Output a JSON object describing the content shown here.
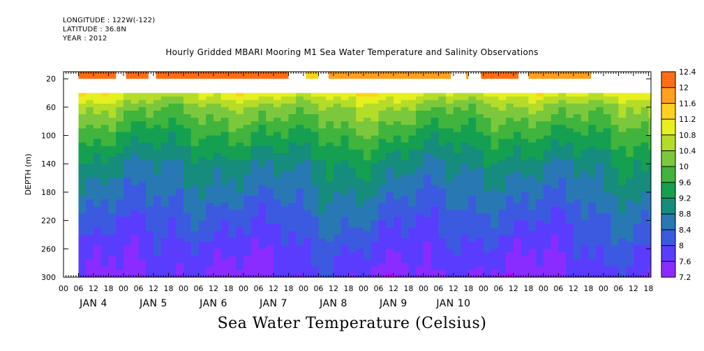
{
  "header": {
    "longitude": "LONGITUDE : 122W(-122)",
    "latitude": "LATITUDE : 36.8N",
    "year": "YEAR : 2012",
    "title": "Hourly Gridded MBARI Mooring M1 Sea Water Temperature and Salinity Observations"
  },
  "chart_data": {
    "type": "heatmap",
    "title": "Hourly Gridded MBARI Mooring M1 Sea Water Temperature and Salinity Observations",
    "xlabel": "Sea Water Temperature (Celsius)",
    "ylabel": "DEPTH (m)",
    "ylim": [
      300,
      10
    ],
    "y_ticks": [
      20,
      60,
      100,
      140,
      180,
      220,
      260,
      300
    ],
    "x_hour_ticks": [
      "00",
      "06",
      "12",
      "18",
      "00",
      "06",
      "12",
      "18",
      "00",
      "06",
      "12",
      "18",
      "00",
      "06",
      "12",
      "18",
      "00",
      "06",
      "12",
      "18",
      "00",
      "06",
      "12",
      "18",
      "00",
      "06",
      "12",
      "18",
      "00",
      "06",
      "12",
      "18",
      "00",
      "06",
      "12",
      "18",
      "00",
      "06",
      "12",
      "18"
    ],
    "x_day_labels": [
      "JAN 4",
      "JAN 5",
      "JAN 6",
      "JAN 7",
      "JAN 8",
      "JAN 9",
      "JAN 10"
    ],
    "x_range_hours": [
      0,
      235
    ],
    "data_start_hour": 6,
    "colorbar": {
      "levels": [
        7.2,
        7.6,
        8,
        8.4,
        8.8,
        9.2,
        9.6,
        10,
        10.4,
        10.8,
        11.2,
        11.6,
        12,
        12.4
      ],
      "tick_labels": [
        "7.2",
        "7.6",
        "8",
        "8.4",
        "8.8",
        "9.2",
        "9.6",
        "10",
        "10.4",
        "10.8",
        "11.2",
        "11.6",
        "12",
        "12.4"
      ],
      "colors": [
        "#c000ff",
        "#8a2cff",
        "#5a3cff",
        "#3c5ae0",
        "#2878b4",
        "#168c7c",
        "#14a050",
        "#40b43c",
        "#7cc83c",
        "#b4dc28",
        "#e6f01e",
        "#ffd21e",
        "#ffa01e",
        "#ff6e14",
        "#ff3c14",
        "#d21414",
        "#aa0a0a"
      ]
    },
    "surface_segments": [
      {
        "start": 6,
        "end": 21,
        "value": 12.0
      },
      {
        "start": 25,
        "end": 34,
        "value": 12.1
      },
      {
        "start": 37,
        "end": 90,
        "value": 12.0
      },
      {
        "start": 97,
        "end": 102,
        "value": 11.5
      },
      {
        "start": 106,
        "end": 155,
        "value": 11.8
      },
      {
        "start": 161,
        "end": 162,
        "value": 11.6
      },
      {
        "start": 167,
        "end": 182,
        "value": 12.0
      },
      {
        "start": 186,
        "end": 211,
        "value": 11.8
      }
    ],
    "profile_depths": [
      40,
      60,
      80,
      100,
      120,
      140,
      160,
      180,
      200,
      220,
      240,
      260,
      280,
      300
    ],
    "profile_temperatures": [
      11.0,
      10.3,
      9.95,
      9.6,
      9.3,
      9.0,
      8.8,
      8.6,
      8.4,
      8.2,
      8.05,
      7.85,
      7.7,
      7.55
    ]
  }
}
